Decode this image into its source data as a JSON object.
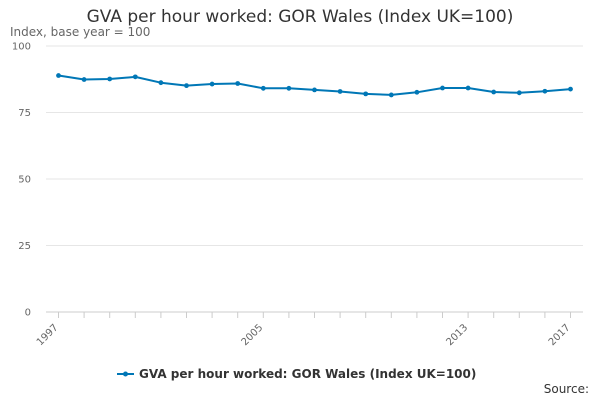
{
  "title": "GVA per hour worked: GOR Wales (Index UK=100)",
  "subtitle": "Index, base year = 100",
  "source_label": "Source:",
  "colors": {
    "series": "#0077b6",
    "grid": "#e6e6e6",
    "axis": "#cccccc"
  },
  "chart_data": {
    "type": "line",
    "title": "GVA per hour worked: GOR Wales (Index UK=100)",
    "ylabel": "Index, base year = 100",
    "xlabel": "",
    "ylim": [
      0,
      100
    ],
    "yticks": [
      0,
      25,
      50,
      75,
      100
    ],
    "xticks": [
      1997,
      2005,
      2013,
      2017
    ],
    "grid": true,
    "legend_position": "bottom",
    "x": [
      1997,
      1998,
      1999,
      2000,
      2001,
      2002,
      2003,
      2004,
      2005,
      2006,
      2007,
      2008,
      2009,
      2010,
      2011,
      2012,
      2013,
      2014,
      2015,
      2016,
      2017
    ],
    "series": [
      {
        "name": "GVA per hour worked: GOR Wales (Index UK=100)",
        "values": [
          88.9,
          87.4,
          87.6,
          88.4,
          86.2,
          85.1,
          85.7,
          85.9,
          84.1,
          84.1,
          83.5,
          82.9,
          82.0,
          81.6,
          82.6,
          84.2,
          84.2,
          82.7,
          82.4,
          83.0,
          83.8
        ]
      }
    ]
  }
}
